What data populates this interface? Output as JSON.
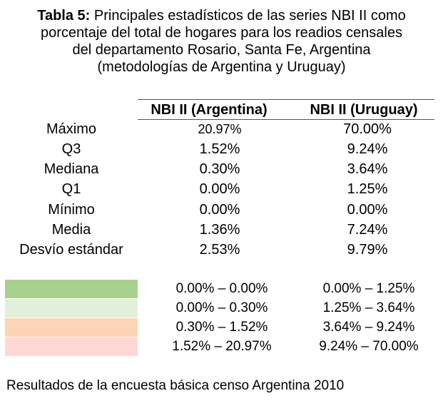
{
  "title": {
    "label": "Tabla 5:",
    "line1": "Principales estadísticos de las series NBI II como",
    "line2": "porcentaje del total de hogares para los readios censales",
    "line3": "del departamento Rosario, Santa Fe, Argentina",
    "line4": "(metodologías de Argentina y Uruguay)"
  },
  "table": {
    "headers": [
      "NBI II (Argentina)",
      "NBI II (Uruguay)"
    ],
    "rows": [
      {
        "name": "Máximo",
        "argentina": "20.97%",
        "uruguay": "70.00%"
      },
      {
        "name": "Q3",
        "argentina": "1.52%",
        "uruguay": "9.24%"
      },
      {
        "name": "Mediana",
        "argentina": "0.30%",
        "uruguay": "3.64%"
      },
      {
        "name": "Q1",
        "argentina": "0.00%",
        "uruguay": "1.25%"
      },
      {
        "name": "Mínimo",
        "argentina": "0.00%",
        "uruguay": "0.00%"
      },
      {
        "name": "Media",
        "argentina": "1.36%",
        "uruguay": "7.24%"
      },
      {
        "name": "Desvío estándar",
        "argentina": "2.53%",
        "uruguay": "9.79%"
      }
    ]
  },
  "legend": [
    {
      "color": "#a9d18e",
      "argentina": "0.00% – 0.00%",
      "uruguay": "0.00% – 1.25%"
    },
    {
      "color": "#e2efda",
      "argentina": "0.00% – 0.30%",
      "uruguay": "1.25% – 3.64%"
    },
    {
      "color": "#fcd5b4",
      "argentina": "0.30% – 1.52%",
      "uruguay": "3.64% – 9.24%"
    },
    {
      "color": "#ffd7d7",
      "argentina": "1.52% – 20.97%",
      "uruguay": "9.24% – 70.00%"
    }
  ],
  "footer": "Resultados de la encuesta básica censo Argentina 2010"
}
